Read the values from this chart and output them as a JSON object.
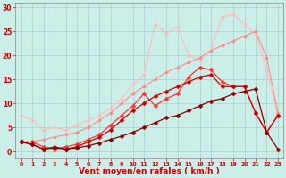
{
  "bg_color": "#cceee8",
  "grid_color": "#aacccc",
  "xlabel": "Vent moyen/en rafales ( km/h )",
  "xlabel_color": "#cc0000",
  "xlabel_fontsize": 6.5,
  "tick_color": "#cc0000",
  "xlim": [
    -0.5,
    23.5
  ],
  "ylim": [
    -1.5,
    31
  ],
  "yticks": [
    0,
    5,
    10,
    15,
    20,
    25,
    30
  ],
  "xticks": [
    0,
    1,
    2,
    3,
    4,
    5,
    6,
    7,
    8,
    9,
    10,
    11,
    12,
    13,
    14,
    15,
    16,
    17,
    18,
    19,
    20,
    21,
    22,
    23
  ],
  "lines": [
    {
      "x": [
        0,
        1,
        2,
        3,
        4,
        5,
        6,
        7,
        8,
        9,
        10,
        11,
        12,
        13,
        14,
        15,
        16,
        17,
        18,
        19,
        20,
        21,
        22,
        23
      ],
      "y": [
        7.5,
        6.5,
        4.5,
        5.0,
        4.5,
        5.5,
        6.5,
        7.5,
        9.0,
        11.0,
        14.0,
        16.0,
        26.5,
        24.5,
        26.0,
        20.0,
        19.0,
        21.0,
        28.0,
        28.5,
        26.5,
        24.5,
        17.0,
        7.5
      ],
      "color": "#ffbbbb",
      "lw": 0.8,
      "marker": "D",
      "ms": 2.0
    },
    {
      "x": [
        0,
        1,
        2,
        3,
        4,
        5,
        6,
        7,
        8,
        9,
        10,
        11,
        12,
        13,
        14,
        15,
        16,
        17,
        18,
        19,
        20,
        21,
        22,
        23
      ],
      "y": [
        2.0,
        2.0,
        2.5,
        3.0,
        3.5,
        4.0,
        5.0,
        6.5,
        8.0,
        10.0,
        12.0,
        13.5,
        15.0,
        16.5,
        17.5,
        18.5,
        19.5,
        21.0,
        22.0,
        23.0,
        24.0,
        25.0,
        19.5,
        8.0
      ],
      "color": "#ff8888",
      "lw": 0.8,
      "marker": "D",
      "ms": 2.0
    },
    {
      "x": [
        0,
        1,
        2,
        3,
        4,
        5,
        6,
        7,
        8,
        9,
        10,
        11,
        12,
        13,
        14,
        15,
        16,
        17,
        18,
        19,
        20,
        21,
        22,
        23
      ],
      "y": [
        2.0,
        2.0,
        1.0,
        0.5,
        1.0,
        1.5,
        2.5,
        3.5,
        5.5,
        7.5,
        9.5,
        12.0,
        9.5,
        11.0,
        12.0,
        15.5,
        17.5,
        17.0,
        14.5,
        13.5,
        13.5,
        8.0,
        4.0,
        7.5
      ],
      "color": "#ff3333",
      "lw": 0.9,
      "marker": "D",
      "ms": 2.5
    },
    {
      "x": [
        0,
        1,
        2,
        3,
        4,
        5,
        6,
        7,
        8,
        9,
        10,
        11,
        12,
        13,
        14,
        15,
        16,
        17,
        18,
        19,
        20,
        21,
        22,
        23
      ],
      "y": [
        2.0,
        1.5,
        0.5,
        1.0,
        0.5,
        1.0,
        2.0,
        3.0,
        4.5,
        6.5,
        8.5,
        10.0,
        11.5,
        12.5,
        13.5,
        14.5,
        15.5,
        16.0,
        13.5,
        13.5,
        13.5,
        8.0,
        4.0,
        7.5
      ],
      "color": "#cc0000",
      "lw": 0.9,
      "marker": "D",
      "ms": 2.5
    },
    {
      "x": [
        0,
        1,
        2,
        3,
        4,
        5,
        6,
        7,
        8,
        9,
        10,
        11,
        12,
        13,
        14,
        15,
        16,
        17,
        18,
        19,
        20,
        21,
        22,
        23
      ],
      "y": [
        2.0,
        1.5,
        0.5,
        0.8,
        0.5,
        0.8,
        1.2,
        1.8,
        2.5,
        3.2,
        4.0,
        5.0,
        6.0,
        7.0,
        7.5,
        8.5,
        9.5,
        10.5,
        11.0,
        12.0,
        12.5,
        13.0,
        4.0,
        0.5
      ],
      "color": "#880000",
      "lw": 0.9,
      "marker": "D",
      "ms": 2.5
    }
  ]
}
